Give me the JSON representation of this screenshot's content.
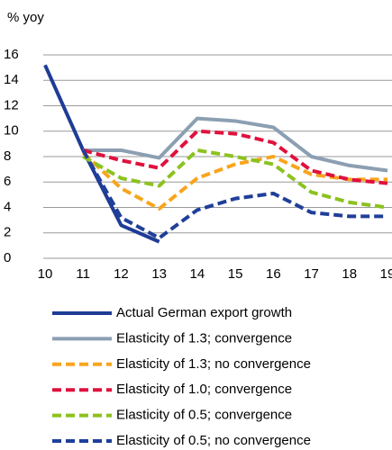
{
  "chart_data": {
    "type": "line",
    "y_label": "% yoy",
    "x": [
      10,
      11,
      12,
      13,
      14,
      15,
      16,
      17,
      18,
      19
    ],
    "xlim": [
      10,
      19
    ],
    "xticks": [
      10,
      11,
      12,
      13,
      14,
      15,
      16,
      17,
      18,
      19
    ],
    "ylim": [
      0,
      16
    ],
    "yticks": [
      0,
      2,
      4,
      6,
      8,
      10,
      12,
      14,
      16
    ],
    "grid": true,
    "series": [
      {
        "name": "Actual German export growth",
        "color": "#1f3c96",
        "dashed": false,
        "values": [
          15.2,
          8.5,
          2.6,
          1.3,
          null,
          null,
          null,
          null,
          null,
          null
        ]
      },
      {
        "name": "Elasticity of 1.3; convergence",
        "color": "#8c9fb2",
        "dashed": false,
        "values": [
          null,
          8.5,
          8.5,
          7.9,
          11.0,
          10.8,
          10.3,
          8.0,
          7.3,
          6.9
        ]
      },
      {
        "name": "Elasticity of 1.3; no convergence",
        "color": "#f8a51c",
        "dashed": true,
        "values": [
          null,
          8.3,
          5.5,
          3.9,
          6.3,
          7.4,
          8.0,
          6.6,
          6.2,
          6.2
        ]
      },
      {
        "name": "Elasticity of 1.0; convergence",
        "color": "#e0113d",
        "dashed": true,
        "values": [
          null,
          8.5,
          7.7,
          7.1,
          10.0,
          9.8,
          9.1,
          6.9,
          6.2,
          5.9
        ]
      },
      {
        "name": "Elasticity of 0.5; convergence",
        "color": "#8cc21f",
        "dashed": true,
        "values": [
          null,
          8.0,
          6.3,
          5.7,
          8.5,
          8.0,
          7.4,
          5.2,
          4.4,
          4.0
        ]
      },
      {
        "name": "Elasticity of 0.5; no convergence",
        "color": "#1f3f99",
        "dashed": true,
        "values": [
          null,
          8.5,
          3.2,
          1.6,
          3.8,
          4.7,
          5.1,
          3.6,
          3.3,
          3.3
        ]
      }
    ]
  }
}
